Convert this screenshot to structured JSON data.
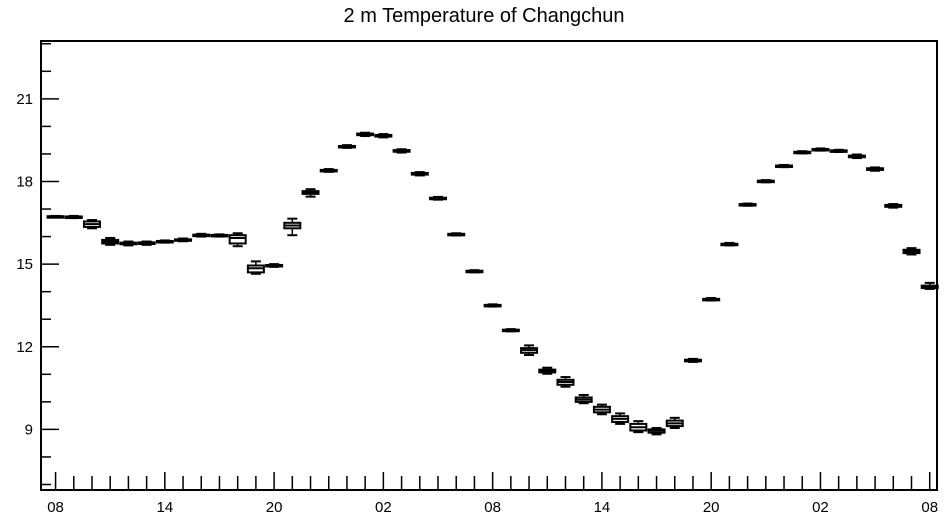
{
  "chart_data": {
    "type": "box",
    "title": "2 m Temperature of Changchun",
    "xlabel": "",
    "ylabel": "",
    "ylim": [
      6.8,
      23.1
    ],
    "yticks": [
      9,
      12,
      15,
      18,
      21
    ],
    "x_tick_labels": [
      "08",
      "14",
      "20",
      "02",
      "08",
      "14",
      "20",
      "02",
      "08"
    ],
    "x_tick_steps": [
      0,
      6,
      12,
      18,
      24,
      30,
      36,
      42,
      48
    ],
    "xlim_steps": [
      -0.8,
      48.4
    ],
    "grid": false,
    "series": [
      {
        "step": 0,
        "min": 16.71,
        "q1": 16.72,
        "median": 16.73,
        "q3": 16.74,
        "max": 16.75
      },
      {
        "step": 1,
        "min": 16.67,
        "q1": 16.69,
        "median": 16.71,
        "q3": 16.73,
        "max": 16.75
      },
      {
        "step": 2,
        "min": 16.3,
        "q1": 16.35,
        "median": 16.45,
        "q3": 16.55,
        "max": 16.6
      },
      {
        "step": 3,
        "min": 15.7,
        "q1": 15.75,
        "median": 15.82,
        "q3": 15.88,
        "max": 15.95
      },
      {
        "step": 4,
        "min": 15.68,
        "q1": 15.72,
        "median": 15.75,
        "q3": 15.78,
        "max": 15.82
      },
      {
        "step": 5,
        "min": 15.7,
        "q1": 15.73,
        "median": 15.76,
        "q3": 15.79,
        "max": 15.82
      },
      {
        "step": 6,
        "min": 15.78,
        "q1": 15.8,
        "median": 15.82,
        "q3": 15.84,
        "max": 15.86
      },
      {
        "step": 7,
        "min": 15.83,
        "q1": 15.85,
        "median": 15.87,
        "q3": 15.9,
        "max": 15.93
      },
      {
        "step": 8,
        "min": 16.0,
        "q1": 16.03,
        "median": 16.05,
        "q3": 16.07,
        "max": 16.1
      },
      {
        "step": 9,
        "min": 16.0,
        "q1": 16.02,
        "median": 16.04,
        "q3": 16.06,
        "max": 16.08
      },
      {
        "step": 10,
        "min": 15.65,
        "q1": 15.75,
        "median": 15.95,
        "q3": 16.05,
        "max": 16.12
      },
      {
        "step": 11,
        "min": 14.65,
        "q1": 14.7,
        "median": 14.85,
        "q3": 14.95,
        "max": 15.1
      },
      {
        "step": 12,
        "min": 14.9,
        "q1": 14.93,
        "median": 14.95,
        "q3": 14.97,
        "max": 15.0
      },
      {
        "step": 13,
        "min": 16.05,
        "q1": 16.3,
        "median": 16.4,
        "q3": 16.5,
        "max": 16.65
      },
      {
        "step": 14,
        "min": 17.45,
        "q1": 17.55,
        "median": 17.6,
        "q3": 17.65,
        "max": 17.72
      },
      {
        "step": 15,
        "min": 18.35,
        "q1": 18.38,
        "median": 18.4,
        "q3": 18.42,
        "max": 18.45
      },
      {
        "step": 16,
        "min": 19.22,
        "q1": 19.25,
        "median": 19.27,
        "q3": 19.29,
        "max": 19.32
      },
      {
        "step": 17,
        "min": 19.65,
        "q1": 19.68,
        "median": 19.71,
        "q3": 19.74,
        "max": 19.77
      },
      {
        "step": 18,
        "min": 19.6,
        "q1": 19.63,
        "median": 19.66,
        "q3": 19.69,
        "max": 19.72
      },
      {
        "step": 19,
        "min": 19.05,
        "q1": 19.08,
        "median": 19.11,
        "q3": 19.14,
        "max": 19.17
      },
      {
        "step": 20,
        "min": 18.22,
        "q1": 18.25,
        "median": 18.28,
        "q3": 18.31,
        "max": 18.34
      },
      {
        "step": 21,
        "min": 17.34,
        "q1": 17.37,
        "median": 17.39,
        "q3": 17.41,
        "max": 17.44
      },
      {
        "step": 22,
        "min": 16.04,
        "q1": 16.06,
        "median": 16.08,
        "q3": 16.1,
        "max": 16.12
      },
      {
        "step": 23,
        "min": 14.7,
        "q1": 14.72,
        "median": 14.74,
        "q3": 14.76,
        "max": 14.78
      },
      {
        "step": 24,
        "min": 13.46,
        "q1": 13.48,
        "median": 13.5,
        "q3": 13.52,
        "max": 13.54
      },
      {
        "step": 25,
        "min": 12.56,
        "q1": 12.58,
        "median": 12.6,
        "q3": 12.62,
        "max": 12.64
      },
      {
        "step": 26,
        "min": 11.7,
        "q1": 11.78,
        "median": 11.88,
        "q3": 11.95,
        "max": 12.05
      },
      {
        "step": 27,
        "min": 11.02,
        "q1": 11.07,
        "median": 11.12,
        "q3": 11.17,
        "max": 11.24
      },
      {
        "step": 28,
        "min": 10.55,
        "q1": 10.62,
        "median": 10.72,
        "q3": 10.8,
        "max": 10.9
      },
      {
        "step": 29,
        "min": 9.95,
        "q1": 10.0,
        "median": 10.08,
        "q3": 10.16,
        "max": 10.25
      },
      {
        "step": 30,
        "min": 9.55,
        "q1": 9.62,
        "median": 9.72,
        "q3": 9.82,
        "max": 9.9
      },
      {
        "step": 31,
        "min": 9.2,
        "q1": 9.27,
        "median": 9.38,
        "q3": 9.48,
        "max": 9.58
      },
      {
        "step": 32,
        "min": 8.9,
        "q1": 8.96,
        "median": 9.08,
        "q3": 9.2,
        "max": 9.3
      },
      {
        "step": 33,
        "min": 8.82,
        "q1": 8.88,
        "median": 8.95,
        "q3": 9.0,
        "max": 9.05
      },
      {
        "step": 34,
        "min": 9.05,
        "q1": 9.12,
        "median": 9.22,
        "q3": 9.32,
        "max": 9.42
      },
      {
        "step": 35,
        "min": 11.45,
        "q1": 11.47,
        "median": 11.5,
        "q3": 11.53,
        "max": 11.56
      },
      {
        "step": 36,
        "min": 13.68,
        "q1": 13.7,
        "median": 13.72,
        "q3": 13.74,
        "max": 13.77
      },
      {
        "step": 37,
        "min": 15.68,
        "q1": 15.7,
        "median": 15.72,
        "q3": 15.74,
        "max": 15.77
      },
      {
        "step": 38,
        "min": 17.12,
        "q1": 17.14,
        "median": 17.16,
        "q3": 17.18,
        "max": 17.2
      },
      {
        "step": 39,
        "min": 17.97,
        "q1": 17.99,
        "median": 18.01,
        "q3": 18.03,
        "max": 18.05
      },
      {
        "step": 40,
        "min": 18.52,
        "q1": 18.54,
        "median": 18.56,
        "q3": 18.58,
        "max": 18.6
      },
      {
        "step": 41,
        "min": 19.02,
        "q1": 19.04,
        "median": 19.06,
        "q3": 19.08,
        "max": 19.1
      },
      {
        "step": 42,
        "min": 19.12,
        "q1": 19.14,
        "median": 19.16,
        "q3": 19.18,
        "max": 19.2
      },
      {
        "step": 43,
        "min": 19.07,
        "q1": 19.09,
        "median": 19.11,
        "q3": 19.13,
        "max": 19.15
      },
      {
        "step": 44,
        "min": 18.85,
        "q1": 18.88,
        "median": 18.91,
        "q3": 18.94,
        "max": 18.98
      },
      {
        "step": 45,
        "min": 18.39,
        "q1": 18.42,
        "median": 18.45,
        "q3": 18.48,
        "max": 18.51
      },
      {
        "step": 46,
        "min": 17.05,
        "q1": 17.08,
        "median": 17.12,
        "q3": 17.15,
        "max": 17.18
      },
      {
        "step": 47,
        "min": 15.35,
        "q1": 15.4,
        "median": 15.46,
        "q3": 15.52,
        "max": 15.58
      },
      {
        "step": 48,
        "min": 14.1,
        "q1": 14.13,
        "median": 14.17,
        "q3": 14.22,
        "max": 14.32
      }
    ]
  }
}
